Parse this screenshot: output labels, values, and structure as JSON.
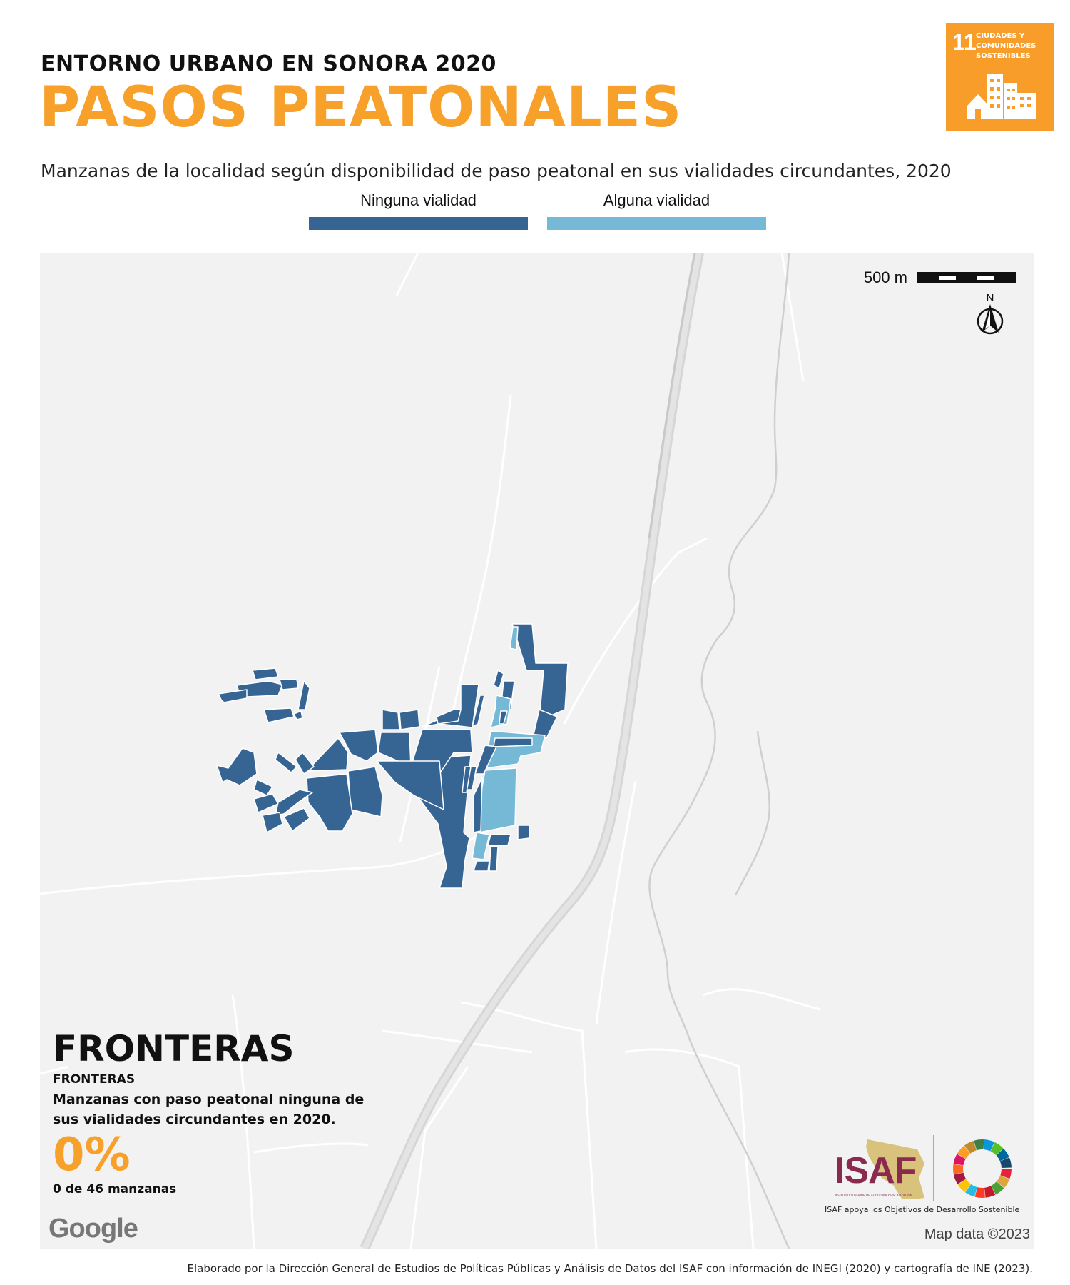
{
  "header": {
    "kicker": "ENTORNO URBANO EN SONORA 2020",
    "title": "PASOS PEATONALES",
    "subtitle": "Manzanas de la localidad según disponibilidad de paso peatonal en sus vialidades circundantes, 2020"
  },
  "legend": [
    {
      "label": "Ninguna vialidad",
      "color": "#366594"
    },
    {
      "label": "Alguna vialidad",
      "color": "#75b9d6"
    }
  ],
  "sdg_badge": {
    "number": "11",
    "text": "CIUDADES Y COMUNIDADES SOSTENIBLES",
    "color": "#f89d2a"
  },
  "map": {
    "scale_label": "500 m",
    "north_label": "N",
    "attribution": "Map data ©2023",
    "provider": "Google"
  },
  "place": {
    "name": "FRONTERAS",
    "name_small": "FRONTERAS",
    "description": "Manzanas con paso peatonal ninguna de sus vialidades circundantes en 2020.",
    "percent": "0%",
    "count_text": "0 de 46 manzanas"
  },
  "logos": {
    "isaf": "ISAF",
    "isaf_full": "INSTITUTO SUPERIOR DE AUDITORÍA Y FISCALIZACIÓN",
    "isaf_tagline": "ISAF apoya los Objetivos de Desarrollo Sostenible"
  },
  "footer": "Elaborado por la Dirección General de Estudios de Políticas Públicas y Análisis de Datos del ISAF con información de INEGI (2020) y cartografía de INE (2023)."
}
